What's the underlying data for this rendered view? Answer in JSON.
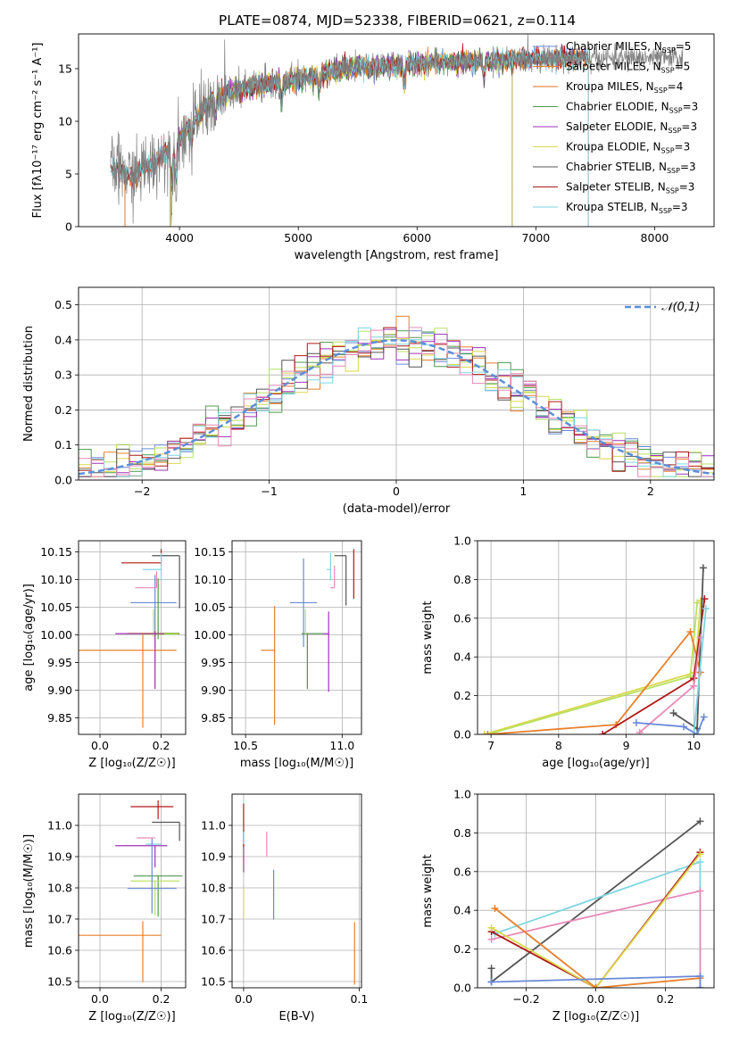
{
  "figure_title": "PLATE=0874, MJD=52338, FIBERID=0621, z=0.114",
  "colors": {
    "chabrier_miles": "#6a8ad8",
    "salpeter_miles": "#e8802e",
    "kroupa_miles": "#e07020",
    "chabrier_elodie": "#4f9a4f",
    "salpeter_elodie": "#a030b8",
    "kroupa_elodie": "#d9d84a",
    "chabrier_stelib": "#555555",
    "salpeter_stelib": "#b01818",
    "kroupa_stelib": "#7dd6e2",
    "data_spectrum": "#808080",
    "pink": "#e88ab8",
    "lightgreen": "#b8e060",
    "grid": "#b0b0b0",
    "normal_curve": "#5b8fd8"
  },
  "chart_data": [
    {
      "id": "spectrum",
      "type": "line",
      "title": "PLATE=0874, MJD=52338, FIBERID=0621, z=0.114",
      "xlabel": "wavelength [Angstrom, rest frame]",
      "ylabel": "Flux [fλ10⁻¹⁷ erg cm⁻² s⁻¹ A⁻¹]",
      "xlim": [
        3150,
        8500
      ],
      "ylim": [
        0,
        18.3
      ],
      "xticks": [
        4000,
        5000,
        6000,
        7000,
        8000
      ],
      "yticks": [
        0,
        5,
        10,
        15
      ],
      "grid": false,
      "legend_position": "top-right",
      "data_range": [
        3420,
        7440
      ],
      "continuum": {
        "x": [
          3420,
          3600,
          3800,
          4000,
          4200,
          4400,
          4600,
          5000,
          5400,
          6000,
          6600,
          7000,
          7440
        ],
        "y": [
          5.6,
          4.8,
          6.2,
          8.2,
          11.3,
          12.6,
          13.3,
          14.0,
          15.0,
          15.5,
          15.7,
          16.0,
          16.0
        ]
      },
      "legend": [
        "Chabrier MILES, N_SSP=5",
        "Salpeter MILES, N_SSP=5",
        "Kroupa MILES, N_SSP=4",
        "Chabrier ELODIE, N_SSP=3",
        "Salpeter ELODIE, N_SSP=3",
        "Kroupa ELODIE, N_SSP=3",
        "Chabrier STELIB, N_SSP=3",
        "Salpeter STELIB, N_SSP=3",
        "Kroupa STELIB, N_SSP=3"
      ]
    },
    {
      "id": "residuals",
      "type": "step",
      "xlabel": "(data-model)/error",
      "ylabel": "Normed distribution",
      "xlim": [
        -2.5,
        2.5
      ],
      "ylim": [
        0,
        0.55
      ],
      "xticks": [
        -2,
        -1,
        0,
        1,
        2
      ],
      "yticks": [
        0.0,
        0.1,
        0.2,
        0.3,
        0.4,
        0.5
      ],
      "grid": true,
      "legend_position": "top-right",
      "legend": [
        "𝒩(0,1)"
      ],
      "bin_width": 0.1
    },
    {
      "id": "age_vs_Z",
      "type": "errorbar",
      "xlabel": "Z [log₁₀(Z/Z☉)]",
      "ylabel": "age  [log₁₀(age/yr)]",
      "xlim": [
        -0.07,
        0.28
      ],
      "ylim": [
        9.82,
        10.17
      ],
      "xticks": [
        0.0,
        0.2
      ],
      "yticks": [
        9.85,
        9.9,
        9.95,
        10.0,
        10.05,
        10.1,
        10.15
      ],
      "grid": true,
      "points": [
        {
          "c": "chabrier_miles",
          "x": 0.18,
          "y": 10.058,
          "xerr": [
            0.08,
            0.07
          ],
          "yerr": [
            0.08,
            0.05
          ]
        },
        {
          "c": "salpeter_miles",
          "x": 0.14,
          "y": 9.972,
          "xerr": [
            0.21,
            0.11
          ],
          "yerr": [
            0.14,
            0.03
          ]
        },
        {
          "c": "kroupa_elodie",
          "x": 0.18,
          "y": 10.003,
          "xerr": [
            0.09,
            0.08
          ],
          "yerr": [
            0.1,
            0.005
          ]
        },
        {
          "c": "chabrier_elodie",
          "x": 0.19,
          "y": 10.002,
          "xerr": [
            0.04,
            0.07
          ],
          "yerr": [
            0.01,
            0.1
          ]
        },
        {
          "c": "lightgreen",
          "x": 0.175,
          "y": 10.001,
          "xerr": [
            0.04,
            0.08
          ],
          "yerr": [
            0.005,
            0.045
          ]
        },
        {
          "c": "salpeter_elodie",
          "x": 0.18,
          "y": 10.002,
          "xerr": [
            0.13,
            0.03
          ],
          "yerr": [
            0.1,
            0.005
          ]
        },
        {
          "c": "chabrier_stelib",
          "x": 0.26,
          "y": 10.143,
          "xerr": [
            0.09,
            0.0
          ],
          "yerr": [
            0.095,
            0.0
          ]
        },
        {
          "c": "salpeter_stelib",
          "x": 0.2,
          "y": 10.13,
          "xerr": [
            0.13,
            0.0
          ],
          "yerr": [
            0.005,
            0.025
          ]
        },
        {
          "c": "kroupa_stelib",
          "x": 0.2,
          "y": 10.118,
          "xerr": [
            0.06,
            0.0
          ],
          "yerr": [
            0.02,
            0.03
          ]
        },
        {
          "c": "pink",
          "x": 0.185,
          "y": 10.085,
          "xerr": [
            0.07,
            0.0
          ],
          "yerr": [
            0.0,
            0.03
          ]
        }
      ]
    },
    {
      "id": "age_vs_mass",
      "type": "errorbar",
      "xlabel": "mass [log₁₀(M/M☉)]",
      "ylabel": "",
      "xlim": [
        10.43,
        11.1
      ],
      "ylim": [
        9.82,
        10.17
      ],
      "xticks": [
        10.5,
        11.0
      ],
      "yticks": [
        9.85,
        9.9,
        9.95,
        10.0,
        10.05,
        10.1,
        10.15
      ],
      "grid": true,
      "points": [
        {
          "c": "chabrier_miles",
          "x": 10.8,
          "y": 10.058,
          "xerr": [
            0.07,
            0.07
          ],
          "yerr": [
            0.08,
            0.08
          ]
        },
        {
          "c": "salpeter_miles",
          "x": 10.65,
          "y": 9.972,
          "xerr": [
            0.07,
            0.0
          ],
          "yerr": [
            0.135,
            0.08
          ]
        },
        {
          "c": "kroupa_elodie",
          "x": 10.82,
          "y": 10.003,
          "xerr": [
            0.0,
            0.0
          ],
          "yerr": [
            0.1,
            0.0
          ]
        },
        {
          "c": "chabrier_elodie",
          "x": 10.82,
          "y": 10.002,
          "xerr": [
            0.03,
            0.08
          ],
          "yerr": [
            0.1,
            0.0
          ]
        },
        {
          "c": "lightgreen",
          "x": 10.81,
          "y": 10.001,
          "xerr": [
            0.0,
            0.0
          ],
          "yerr": [
            0.0,
            0.045
          ]
        },
        {
          "c": "salpeter_elodie",
          "x": 10.93,
          "y": 10.002,
          "xerr": [
            0.03,
            0.0
          ],
          "yerr": [
            0.105,
            0.04
          ]
        },
        {
          "c": "chabrier_stelib",
          "x": 11.02,
          "y": 10.143,
          "xerr": [
            0.06,
            0.0
          ],
          "yerr": [
            0.09,
            0.0
          ]
        },
        {
          "c": "salpeter_stelib",
          "x": 11.06,
          "y": 10.13,
          "xerr": [
            0.0,
            0.0
          ],
          "yerr": [
            0.065,
            0.025
          ]
        },
        {
          "c": "kroupa_stelib",
          "x": 10.94,
          "y": 10.118,
          "xerr": [
            0.02,
            0.0
          ],
          "yerr": [
            0.02,
            0.03
          ]
        },
        {
          "c": "pink",
          "x": 10.96,
          "y": 10.085,
          "xerr": [
            0.02,
            0.0
          ],
          "yerr": [
            0.0,
            0.04
          ]
        }
      ]
    },
    {
      "id": "weight_vs_age",
      "type": "line",
      "xlabel": "age  [log₁₀(age/yr)]",
      "ylabel": "mass weight",
      "xlim": [
        6.8,
        10.3
      ],
      "ylim": [
        0,
        1.0
      ],
      "xticks": [
        7,
        8,
        9,
        10
      ],
      "yticks": [
        0.0,
        0.2,
        0.4,
        0.6,
        0.8,
        1.0
      ],
      "grid": true,
      "series": [
        {
          "c": "kroupa_elodie",
          "x": [
            6.9,
            10.02,
            10.1
          ],
          "y": [
            0.0,
            0.32,
            0.69
          ]
        },
        {
          "c": "lightgreen",
          "x": [
            6.95,
            9.95,
            10.05
          ],
          "y": [
            0.0,
            0.3,
            0.68
          ]
        },
        {
          "c": "salpeter_miles",
          "x": [
            6.95,
            8.85,
            9.95,
            10.1
          ],
          "y": [
            0.0,
            0.05,
            0.53,
            0.32
          ]
        },
        {
          "c": "salpeter_stelib",
          "x": [
            8.65,
            10.0,
            10.16
          ],
          "y": [
            0.0,
            0.29,
            0.7
          ]
        },
        {
          "c": "chabrier_stelib",
          "x": [
            9.7,
            10.05,
            10.14
          ],
          "y": [
            0.11,
            0.03,
            0.86
          ]
        },
        {
          "c": "pink",
          "x": [
            9.2,
            10.0,
            10.1
          ],
          "y": [
            0.01,
            0.25,
            0.5
          ]
        },
        {
          "c": "kroupa_stelib",
          "x": [
            10.0,
            10.18
          ],
          "y": [
            0.0,
            0.65
          ]
        },
        {
          "c": "chabrier_miles",
          "x": [
            9.15,
            9.85,
            10.05,
            10.15
          ],
          "y": [
            0.06,
            0.04,
            0.0,
            0.09
          ]
        }
      ]
    },
    {
      "id": "mass_vs_Z",
      "type": "errorbar",
      "xlabel": "Z [log₁₀(Z/Z☉)]",
      "ylabel": "mass [log₁₀(M/M☉)]",
      "xlim": [
        -0.07,
        0.28
      ],
      "ylim": [
        10.48,
        11.1
      ],
      "xticks": [
        0.0,
        0.2
      ],
      "yticks": [
        10.5,
        10.6,
        10.7,
        10.8,
        10.9,
        11.0
      ],
      "grid": true,
      "points": [
        {
          "c": "salpeter_stelib",
          "x": 0.19,
          "y": 11.06,
          "xerr": [
            0.09,
            0.05
          ],
          "yerr": [
            0.04,
            0.02
          ]
        },
        {
          "c": "chabrier_stelib",
          "x": 0.26,
          "y": 11.01,
          "xerr": [
            0.09,
            0.0
          ],
          "yerr": [
            0.06,
            0.0
          ]
        },
        {
          "c": "salpeter_elodie",
          "x": 0.18,
          "y": 10.935,
          "xerr": [
            0.13,
            0.04
          ],
          "yerr": [
            0.07,
            0.0
          ]
        },
        {
          "c": "pink",
          "x": 0.18,
          "y": 10.96,
          "xerr": [
            0.06,
            0.0
          ],
          "yerr": [
            0.0,
            0.0
          ]
        },
        {
          "c": "kroupa_stelib",
          "x": 0.2,
          "y": 10.94,
          "xerr": [
            0.05,
            0.0
          ],
          "yerr": [
            0.0,
            0.0
          ]
        },
        {
          "c": "chabrier_elodie",
          "x": 0.19,
          "y": 10.838,
          "xerr": [
            0.08,
            0.08
          ],
          "yerr": [
            0.13,
            0.0
          ]
        },
        {
          "c": "lightgreen",
          "x": 0.18,
          "y": 10.822,
          "xerr": [
            0.08,
            0.08
          ],
          "yerr": [
            0.11,
            0.0
          ]
        },
        {
          "c": "chabrier_miles",
          "x": 0.17,
          "y": 10.798,
          "xerr": [
            0.08,
            0.08
          ],
          "yerr": [
            0.08,
            0.16
          ]
        },
        {
          "c": "salpeter_miles",
          "x": 0.14,
          "y": 10.648,
          "xerr": [
            0.21,
            0.06
          ],
          "yerr": [
            0.15,
            0.045
          ]
        }
      ]
    },
    {
      "id": "mass_vs_ebv",
      "type": "errorbar",
      "xlabel": "E(B-V)",
      "ylabel": "",
      "xlim": [
        -0.01,
        0.102
      ],
      "ylim": [
        10.48,
        11.1
      ],
      "xticks": [
        0.0,
        0.1
      ],
      "yticks": [
        10.5,
        10.6,
        10.7,
        10.8,
        10.9,
        11.0
      ],
      "grid": true,
      "points": [
        {
          "c": "salpeter_elodie",
          "x": 0.0,
          "y": 10.92,
          "xerr": [
            0.0,
            0.0
          ],
          "yerr": [
            0.07,
            0.06
          ]
        },
        {
          "c": "salpeter_stelib",
          "x": 0.0,
          "y": 11.0,
          "xerr": [
            0.0,
            0.0
          ],
          "yerr": [
            0.07,
            0.07
          ]
        },
        {
          "c": "kroupa_elodie",
          "x": 0.0,
          "y": 10.8,
          "xerr": [
            0.0,
            0.0
          ],
          "yerr": [
            0.1,
            0.0
          ]
        },
        {
          "c": "kroupa_stelib",
          "x": 0.0,
          "y": 10.94,
          "xerr": [
            0.0,
            0.0
          ],
          "yerr": [
            0.0,
            0.04
          ]
        },
        {
          "c": "pink",
          "x": 0.02,
          "y": 10.94,
          "xerr": [
            0.0,
            0.0
          ],
          "yerr": [
            0.04,
            0.04
          ]
        },
        {
          "c": "chabrier_miles",
          "x": 0.026,
          "y": 10.798,
          "xerr": [
            0.0,
            0.0
          ],
          "yerr": [
            0.1,
            0.06
          ]
        },
        {
          "c": "salpeter_miles",
          "x": 0.096,
          "y": 10.59,
          "xerr": [
            0.0,
            0.0
          ],
          "yerr": [
            0.1,
            0.1
          ]
        }
      ]
    },
    {
      "id": "weight_vs_Z",
      "type": "line",
      "xlabel": "Z [log₁₀(Z/Z☉)]",
      "ylabel": "mass weight",
      "xlim": [
        -0.34,
        0.34
      ],
      "ylim": [
        0,
        1.0
      ],
      "xticks": [
        -0.2,
        0.0,
        0.2
      ],
      "yticks": [
        0.0,
        0.2,
        0.4,
        0.6,
        0.8,
        1.0
      ],
      "grid": true,
      "series": [
        {
          "c": "chabrier_stelib",
          "x": [
            -0.3,
            -0.3,
            0.3
          ],
          "y": [
            0.1,
            0.03,
            0.86
          ]
        },
        {
          "c": "kroupa_stelib",
          "x": [
            -0.29,
            0.3,
            0.3
          ],
          "y": [
            0.28,
            0.65,
            0.0
          ]
        },
        {
          "c": "pink",
          "x": [
            -0.3,
            0.3,
            0.3
          ],
          "y": [
            0.25,
            0.5,
            0.0
          ]
        },
        {
          "c": "salpeter_stelib",
          "x": [
            -0.3,
            0.0,
            0.3
          ],
          "y": [
            0.29,
            0.0,
            0.7
          ]
        },
        {
          "c": "kroupa_elodie",
          "x": [
            -0.3,
            0.0,
            0.3
          ],
          "y": [
            0.31,
            0.0,
            0.69
          ]
        },
        {
          "c": "salpeter_miles",
          "x": [
            -0.29,
            0.0,
            0.3
          ],
          "y": [
            0.41,
            0.0,
            0.05
          ]
        },
        {
          "c": "chabrier_miles",
          "x": [
            -0.3,
            0.3,
            0.3
          ],
          "y": [
            0.03,
            0.06,
            0.0
          ]
        }
      ]
    }
  ]
}
